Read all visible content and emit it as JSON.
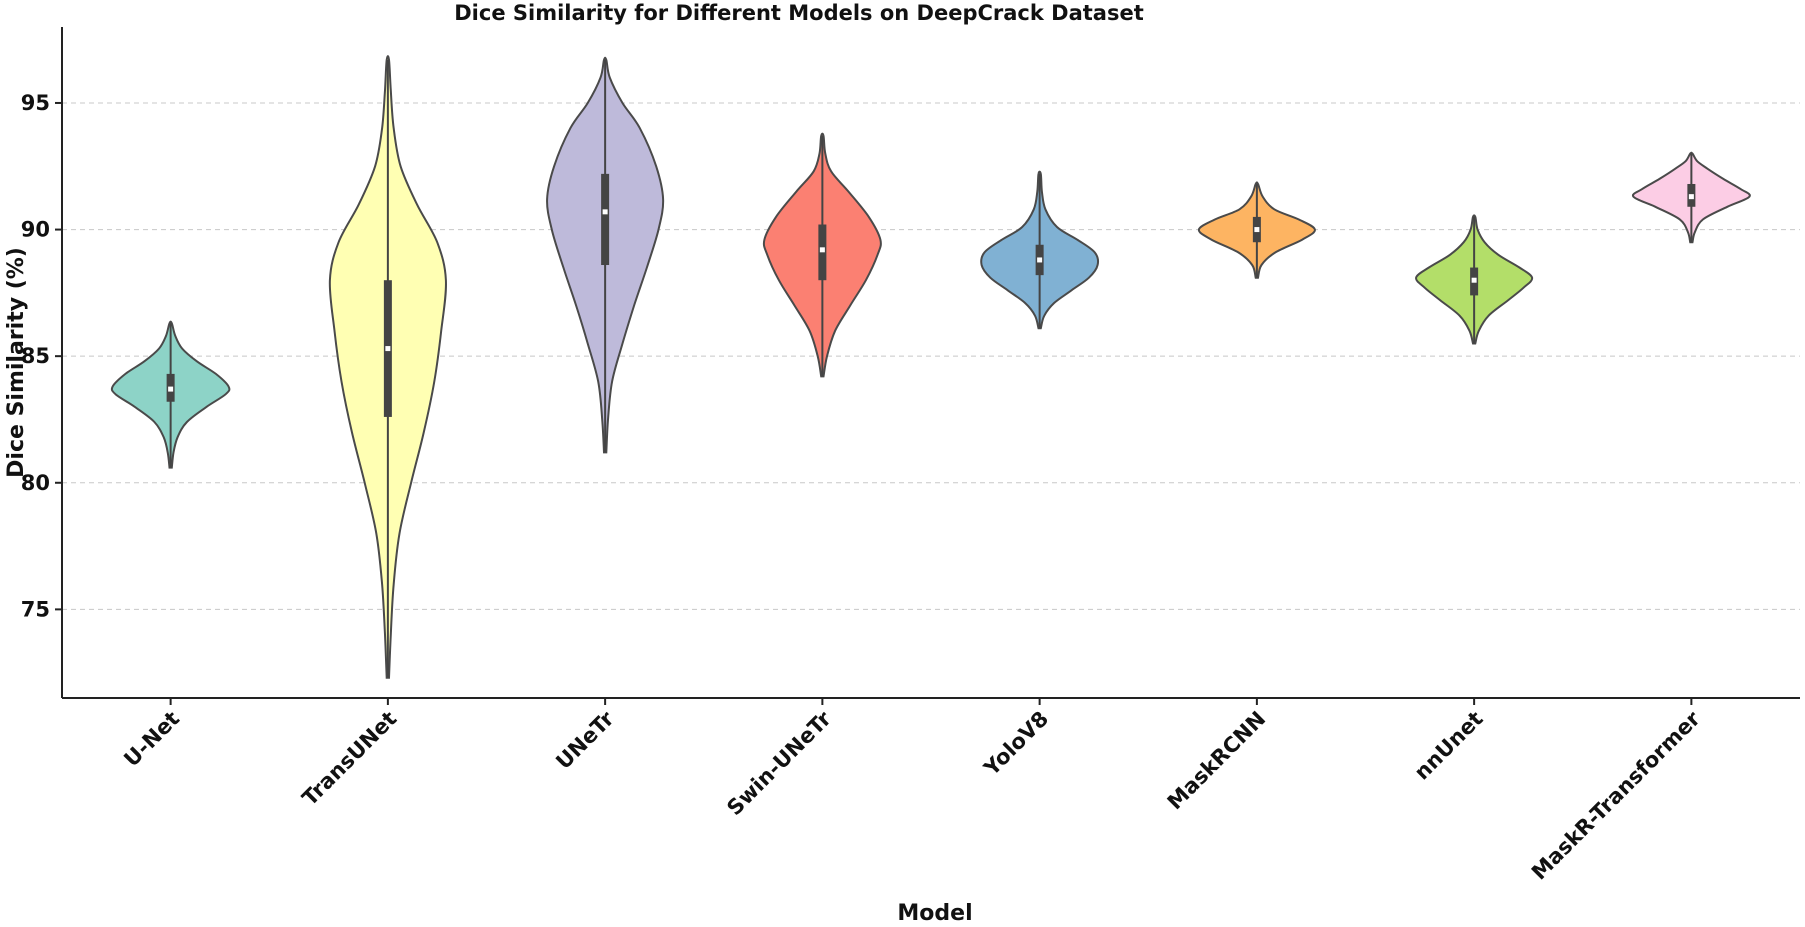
{
  "chart_data": {
    "type": "violin",
    "title": "Dice Similarity for Different Models on DeepCrack Dataset",
    "xlabel": "Model",
    "ylabel": "Dice Similarity (%)",
    "ylim": [
      71.5,
      98
    ],
    "yticks": [
      75,
      80,
      85,
      90,
      95
    ],
    "grid": "y-dashed",
    "categories": [
      "U-Net",
      "TransUNet",
      "UNeTr",
      "Swin-UNeTr",
      "YoloV8",
      "MaskRCNN",
      "nnUnet",
      "MaskR-Transformer"
    ],
    "series": [
      {
        "name": "U-Net",
        "min": 80.6,
        "q1": 83.2,
        "median": 83.7,
        "q3": 84.3,
        "max": 86.3,
        "color": "#8dd3c7",
        "density": [
          [
            80.6,
            0.02
          ],
          [
            81.2,
            0.05
          ],
          [
            81.8,
            0.12
          ],
          [
            82.4,
            0.28
          ],
          [
            83.0,
            0.62
          ],
          [
            83.5,
            0.95
          ],
          [
            83.8,
            1.0
          ],
          [
            84.3,
            0.78
          ],
          [
            84.8,
            0.45
          ],
          [
            85.3,
            0.2
          ],
          [
            85.8,
            0.08
          ],
          [
            86.3,
            0.02
          ]
        ]
      },
      {
        "name": "TransUNet",
        "min": 72.3,
        "q1": 82.6,
        "median": 85.3,
        "q3": 88.0,
        "max": 96.7,
        "color": "#ffffb3",
        "density": [
          [
            72.3,
            0.02
          ],
          [
            74.0,
            0.05
          ],
          [
            76.0,
            0.1
          ],
          [
            78.0,
            0.2
          ],
          [
            80.0,
            0.4
          ],
          [
            82.0,
            0.62
          ],
          [
            84.0,
            0.8
          ],
          [
            86.0,
            0.92
          ],
          [
            88.0,
            1.0
          ],
          [
            89.5,
            0.85
          ],
          [
            91.0,
            0.5
          ],
          [
            92.5,
            0.22
          ],
          [
            94.0,
            0.1
          ],
          [
            95.5,
            0.05
          ],
          [
            96.7,
            0.02
          ]
        ]
      },
      {
        "name": "UNeTr",
        "min": 81.2,
        "q1": 88.6,
        "median": 90.7,
        "q3": 92.2,
        "max": 96.7,
        "color": "#bebada",
        "density": [
          [
            81.2,
            0.02
          ],
          [
            82.5,
            0.05
          ],
          [
            84.0,
            0.12
          ],
          [
            85.5,
            0.3
          ],
          [
            87.0,
            0.5
          ],
          [
            88.5,
            0.72
          ],
          [
            90.0,
            0.92
          ],
          [
            91.2,
            1.0
          ],
          [
            92.5,
            0.88
          ],
          [
            94.0,
            0.6
          ],
          [
            95.0,
            0.3
          ],
          [
            96.0,
            0.08
          ],
          [
            96.7,
            0.02
          ]
        ]
      },
      {
        "name": "Swin-UNeTr",
        "min": 84.2,
        "q1": 88.0,
        "median": 89.2,
        "q3": 90.2,
        "max": 93.7,
        "color": "#fb8072",
        "density": [
          [
            84.2,
            0.02
          ],
          [
            85.0,
            0.08
          ],
          [
            86.0,
            0.22
          ],
          [
            87.0,
            0.48
          ],
          [
            88.0,
            0.75
          ],
          [
            89.0,
            0.95
          ],
          [
            89.6,
            1.0
          ],
          [
            90.5,
            0.8
          ],
          [
            91.5,
            0.45
          ],
          [
            92.3,
            0.15
          ],
          [
            93.0,
            0.05
          ],
          [
            93.7,
            0.02
          ]
        ]
      },
      {
        "name": "YoloV8",
        "min": 86.1,
        "q1": 88.2,
        "median": 88.8,
        "q3": 89.4,
        "max": 92.2,
        "color": "#80b1d3",
        "density": [
          [
            86.1,
            0.02
          ],
          [
            86.6,
            0.08
          ],
          [
            87.1,
            0.25
          ],
          [
            87.6,
            0.55
          ],
          [
            88.1,
            0.85
          ],
          [
            88.6,
            1.0
          ],
          [
            89.1,
            0.95
          ],
          [
            89.6,
            0.65
          ],
          [
            90.1,
            0.3
          ],
          [
            90.8,
            0.1
          ],
          [
            91.5,
            0.04
          ],
          [
            92.2,
            0.02
          ]
        ]
      },
      {
        "name": "MaskRCNN",
        "min": 88.1,
        "q1": 89.5,
        "median": 90.0,
        "q3": 90.5,
        "max": 91.8,
        "color": "#fdb462",
        "density": [
          [
            88.1,
            0.02
          ],
          [
            88.6,
            0.08
          ],
          [
            89.1,
            0.32
          ],
          [
            89.6,
            0.78
          ],
          [
            90.0,
            1.0
          ],
          [
            90.4,
            0.72
          ],
          [
            90.8,
            0.3
          ],
          [
            91.3,
            0.1
          ],
          [
            91.8,
            0.02
          ]
        ]
      },
      {
        "name": "nnUnet",
        "min": 85.5,
        "q1": 87.4,
        "median": 88.0,
        "q3": 88.5,
        "max": 90.5,
        "color": "#b3de69",
        "density": [
          [
            85.5,
            0.02
          ],
          [
            86.0,
            0.08
          ],
          [
            86.6,
            0.25
          ],
          [
            87.2,
            0.58
          ],
          [
            87.7,
            0.85
          ],
          [
            88.1,
            1.0
          ],
          [
            88.5,
            0.78
          ],
          [
            89.0,
            0.42
          ],
          [
            89.5,
            0.18
          ],
          [
            90.0,
            0.06
          ],
          [
            90.5,
            0.02
          ]
        ]
      },
      {
        "name": "MaskR-Transformer",
        "min": 89.5,
        "q1": 90.9,
        "median": 91.3,
        "q3": 91.8,
        "max": 93.0,
        "color": "#fccde5",
        "density": [
          [
            89.5,
            0.02
          ],
          [
            89.9,
            0.06
          ],
          [
            90.4,
            0.2
          ],
          [
            90.9,
            0.62
          ],
          [
            91.3,
            1.0
          ],
          [
            91.6,
            0.85
          ],
          [
            92.0,
            0.55
          ],
          [
            92.4,
            0.28
          ],
          [
            92.7,
            0.1
          ],
          [
            93.0,
            0.02
          ]
        ]
      }
    ]
  }
}
